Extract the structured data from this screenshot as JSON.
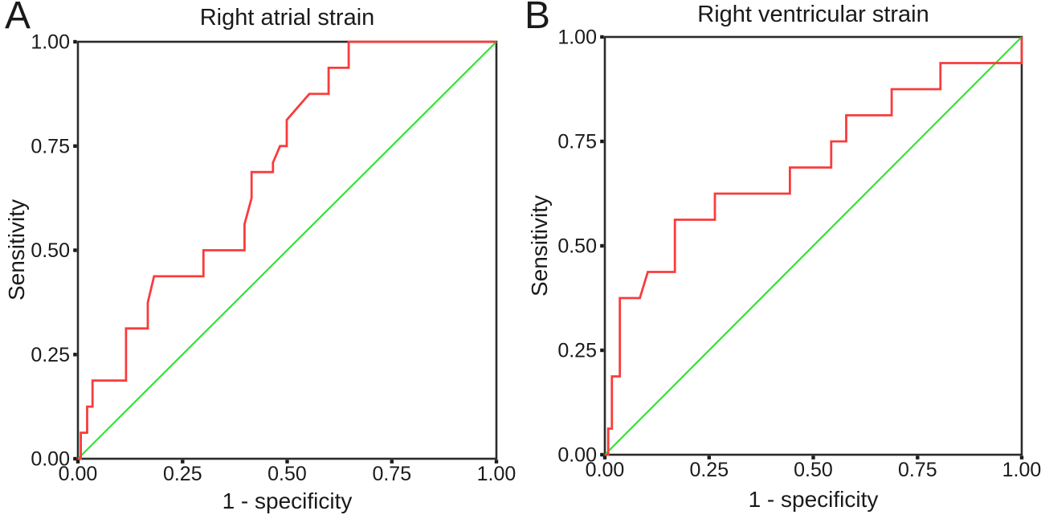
{
  "figure": {
    "background": "#ffffff",
    "axis_color": "#2b2b2b",
    "tick_color": "#1a1a1a",
    "roc_color": "#f83c3c",
    "reference_color": "#35e236"
  },
  "chart_data": [
    {
      "type": "line",
      "panel_letter": "A",
      "title": "Right atrial strain",
      "xlabel": "1 - specificity",
      "ylabel": "Sensitivity",
      "xlim": [
        0,
        1
      ],
      "ylim": [
        0,
        1
      ],
      "grid": false,
      "legend": "none",
      "xticks": [
        0,
        0.25,
        0.5,
        0.75,
        1
      ],
      "yticks": [
        0,
        0.25,
        0.5,
        0.75,
        1
      ],
      "xtick_labels": [
        "0.00",
        "0.25",
        "0.50",
        "0.75",
        "1.00"
      ],
      "ytick_labels": [
        "0.00",
        "0.25",
        "0.50",
        "0.75",
        "1.00"
      ],
      "series": [
        {
          "name": "ROC curve",
          "color": "#f83c3c",
          "width": 2.8,
          "points": [
            [
              0,
              0
            ],
            [
              0.007,
              0
            ],
            [
              0.007,
              0.0625
            ],
            [
              0.022,
              0.0625
            ],
            [
              0.022,
              0.125
            ],
            [
              0.035,
              0.125
            ],
            [
              0.035,
              0.1875
            ],
            [
              0.115,
              0.1875
            ],
            [
              0.115,
              0.3125
            ],
            [
              0.167,
              0.3125
            ],
            [
              0.167,
              0.375
            ],
            [
              0.182,
              0.4375
            ],
            [
              0.3,
              0.4375
            ],
            [
              0.3,
              0.5
            ],
            [
              0.398,
              0.5
            ],
            [
              0.398,
              0.5625
            ],
            [
              0.415,
              0.625
            ],
            [
              0.415,
              0.6875
            ],
            [
              0.466,
              0.6875
            ],
            [
              0.466,
              0.71
            ],
            [
              0.483,
              0.75
            ],
            [
              0.499,
              0.75
            ],
            [
              0.499,
              0.8125
            ],
            [
              0.553,
              0.875
            ],
            [
              0.599,
              0.875
            ],
            [
              0.599,
              0.9375
            ],
            [
              0.647,
              0.9375
            ],
            [
              0.647,
              1
            ],
            [
              1,
              1
            ]
          ]
        },
        {
          "name": "Reference line",
          "color": "#35e236",
          "width": 2.2,
          "points": [
            [
              0,
              0
            ],
            [
              1,
              1
            ]
          ]
        }
      ]
    },
    {
      "type": "line",
      "panel_letter": "B",
      "title": "Right ventricular strain",
      "xlabel": "1 - specificity",
      "ylabel": "Sensitivity",
      "xlim": [
        0,
        1
      ],
      "ylim": [
        0,
        1
      ],
      "grid": false,
      "legend": "none",
      "xticks": [
        0,
        0.25,
        0.5,
        0.75,
        1
      ],
      "yticks": [
        0,
        0.25,
        0.5,
        0.75,
        1
      ],
      "xtick_labels": [
        "0.00",
        "0.25",
        "0.50",
        "0.75",
        "1.00"
      ],
      "ytick_labels": [
        "0.00",
        "0.25",
        "0.50",
        "0.75",
        "1.00"
      ],
      "series": [
        {
          "name": "ROC curve",
          "color": "#f83c3c",
          "width": 2.8,
          "points": [
            [
              0,
              0
            ],
            [
              0.008,
              0
            ],
            [
              0.008,
              0.0625
            ],
            [
              0.017,
              0.0625
            ],
            [
              0.017,
              0.1875
            ],
            [
              0.036,
              0.1875
            ],
            [
              0.036,
              0.375
            ],
            [
              0.084,
              0.375
            ],
            [
              0.103,
              0.4375
            ],
            [
              0.168,
              0.4375
            ],
            [
              0.168,
              0.5625
            ],
            [
              0.264,
              0.5625
            ],
            [
              0.264,
              0.625
            ],
            [
              0.444,
              0.625
            ],
            [
              0.444,
              0.6875
            ],
            [
              0.543,
              0.6875
            ],
            [
              0.543,
              0.75
            ],
            [
              0.579,
              0.75
            ],
            [
              0.579,
              0.8125
            ],
            [
              0.688,
              0.8125
            ],
            [
              0.688,
              0.875
            ],
            [
              0.805,
              0.875
            ],
            [
              0.805,
              0.9375
            ],
            [
              1,
              0.9375
            ],
            [
              1,
              1
            ]
          ]
        },
        {
          "name": "Reference line",
          "color": "#35e236",
          "width": 2.2,
          "points": [
            [
              0,
              0
            ],
            [
              1,
              1
            ]
          ]
        }
      ]
    }
  ]
}
